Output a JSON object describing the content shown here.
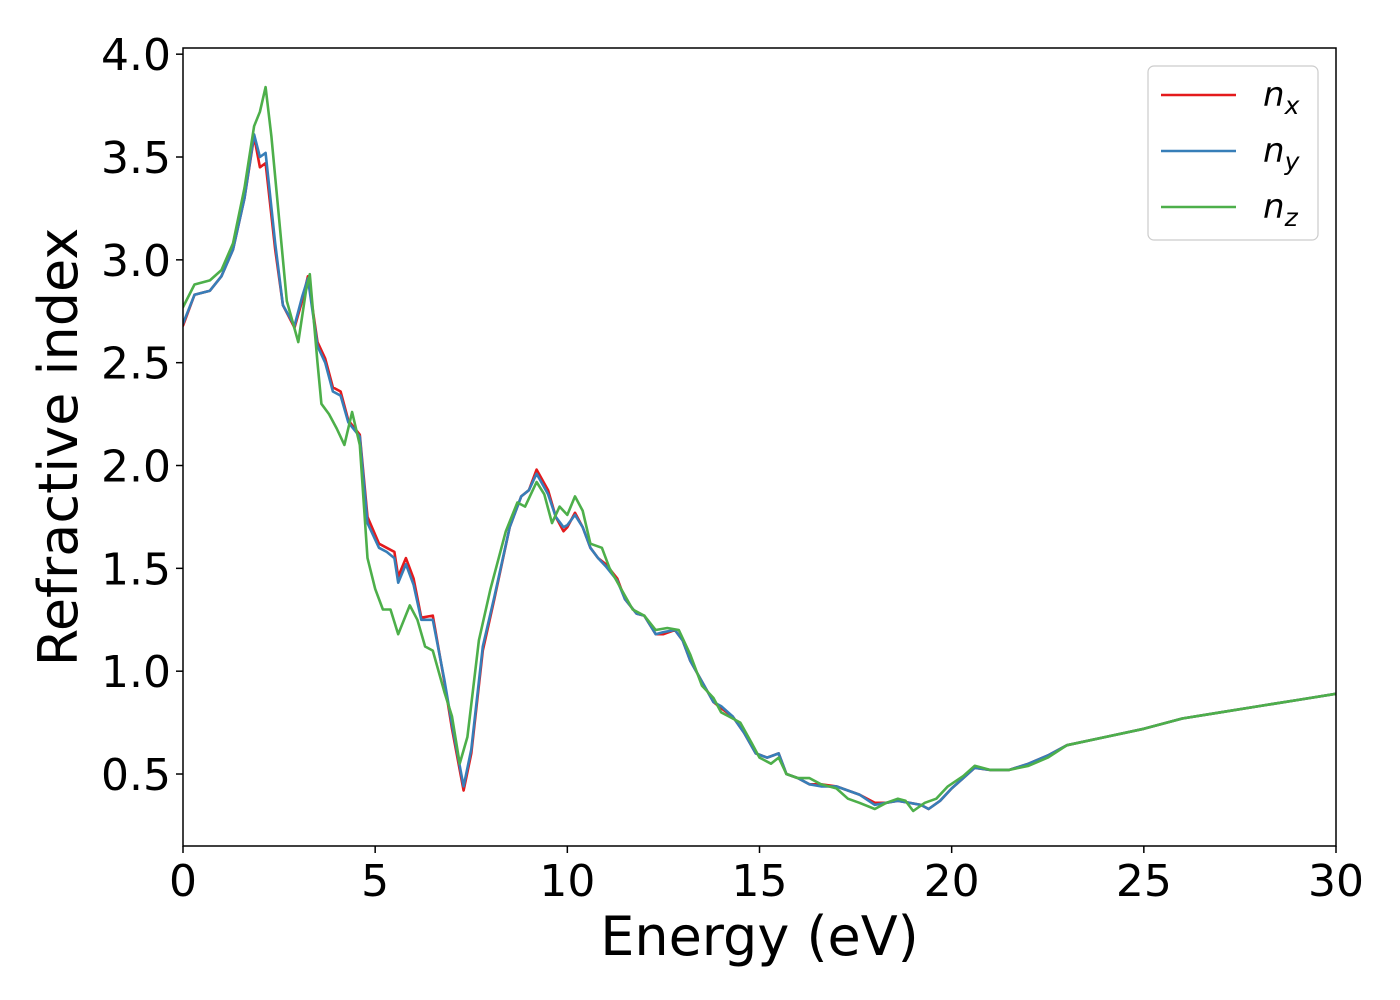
{
  "chart_data": {
    "type": "line",
    "title": "",
    "xlabel": "Energy (eV)",
    "ylabel": "Refractive index",
    "xlim": [
      0,
      30
    ],
    "ylim": [
      0.15,
      4.03
    ],
    "xticks": [
      0,
      5,
      10,
      15,
      20,
      25,
      30
    ],
    "xtick_labels": [
      "0",
      "5",
      "10",
      "15",
      "20",
      "25",
      "30"
    ],
    "yticks": [
      0.5,
      1.0,
      1.5,
      2.0,
      2.5,
      3.0,
      3.5,
      4.0
    ],
    "ytick_labels": [
      "0.5",
      "1.0",
      "1.5",
      "2.0",
      "2.5",
      "3.0",
      "3.5",
      "4.0"
    ],
    "grid": false,
    "legend_position": "top-right",
    "series": [
      {
        "name": "n_x",
        "base": "n",
        "sub": "x",
        "color": "#e41a1c",
        "points": [
          [
            0,
            2.68
          ],
          [
            0.3,
            2.83
          ],
          [
            0.7,
            2.85
          ],
          [
            1.0,
            2.92
          ],
          [
            1.3,
            3.05
          ],
          [
            1.6,
            3.3
          ],
          [
            1.85,
            3.6
          ],
          [
            2.0,
            3.45
          ],
          [
            2.15,
            3.47
          ],
          [
            2.4,
            3.05
          ],
          [
            2.6,
            2.78
          ],
          [
            2.9,
            2.67
          ],
          [
            3.1,
            2.8
          ],
          [
            3.25,
            2.92
          ],
          [
            3.5,
            2.6
          ],
          [
            3.7,
            2.52
          ],
          [
            3.9,
            2.38
          ],
          [
            4.1,
            2.36
          ],
          [
            4.3,
            2.22
          ],
          [
            4.6,
            2.15
          ],
          [
            4.8,
            1.75
          ],
          [
            5.1,
            1.62
          ],
          [
            5.3,
            1.6
          ],
          [
            5.5,
            1.58
          ],
          [
            5.6,
            1.46
          ],
          [
            5.8,
            1.55
          ],
          [
            6.0,
            1.45
          ],
          [
            6.2,
            1.26
          ],
          [
            6.5,
            1.27
          ],
          [
            6.8,
            0.95
          ],
          [
            7.0,
            0.72
          ],
          [
            7.3,
            0.42
          ],
          [
            7.5,
            0.6
          ],
          [
            7.8,
            1.1
          ],
          [
            8.1,
            1.35
          ],
          [
            8.5,
            1.7
          ],
          [
            8.8,
            1.85
          ],
          [
            9.0,
            1.88
          ],
          [
            9.2,
            1.98
          ],
          [
            9.5,
            1.88
          ],
          [
            9.7,
            1.75
          ],
          [
            9.9,
            1.68
          ],
          [
            10.0,
            1.7
          ],
          [
            10.2,
            1.77
          ],
          [
            10.4,
            1.7
          ],
          [
            10.6,
            1.6
          ],
          [
            10.8,
            1.55
          ],
          [
            11.0,
            1.52
          ],
          [
            11.3,
            1.45
          ],
          [
            11.5,
            1.35
          ],
          [
            11.8,
            1.28
          ],
          [
            12.0,
            1.27
          ],
          [
            12.3,
            1.18
          ],
          [
            12.5,
            1.18
          ],
          [
            12.8,
            1.2
          ],
          [
            13.0,
            1.15
          ],
          [
            13.2,
            1.05
          ],
          [
            13.5,
            0.95
          ],
          [
            13.8,
            0.85
          ],
          [
            14.0,
            0.82
          ],
          [
            14.3,
            0.78
          ],
          [
            14.6,
            0.7
          ],
          [
            14.9,
            0.6
          ],
          [
            15.2,
            0.58
          ],
          [
            15.5,
            0.6
          ],
          [
            15.7,
            0.5
          ],
          [
            16.0,
            0.48
          ],
          [
            16.3,
            0.45
          ],
          [
            16.6,
            0.45
          ],
          [
            17.0,
            0.44
          ],
          [
            17.3,
            0.42
          ],
          [
            17.6,
            0.4
          ],
          [
            18.0,
            0.36
          ],
          [
            18.3,
            0.36
          ],
          [
            18.6,
            0.37
          ],
          [
            18.9,
            0.36
          ],
          [
            19.2,
            0.35
          ],
          [
            19.4,
            0.33
          ],
          [
            19.7,
            0.37
          ],
          [
            20.0,
            0.43
          ],
          [
            20.3,
            0.48
          ],
          [
            20.6,
            0.53
          ],
          [
            21.0,
            0.52
          ],
          [
            21.5,
            0.52
          ],
          [
            22.0,
            0.55
          ],
          [
            22.5,
            0.59
          ],
          [
            23.0,
            0.64
          ],
          [
            24.0,
            0.68
          ],
          [
            25.0,
            0.72
          ],
          [
            26.0,
            0.77
          ],
          [
            27.0,
            0.8
          ],
          [
            28.0,
            0.83
          ],
          [
            29.0,
            0.86
          ],
          [
            30.0,
            0.89
          ]
        ]
      },
      {
        "name": "n_y",
        "base": "n",
        "sub": "y",
        "color": "#377eb8",
        "points": [
          [
            0,
            2.69
          ],
          [
            0.3,
            2.83
          ],
          [
            0.7,
            2.85
          ],
          [
            1.0,
            2.92
          ],
          [
            1.3,
            3.05
          ],
          [
            1.6,
            3.3
          ],
          [
            1.85,
            3.61
          ],
          [
            2.0,
            3.5
          ],
          [
            2.15,
            3.52
          ],
          [
            2.4,
            3.08
          ],
          [
            2.6,
            2.78
          ],
          [
            2.9,
            2.68
          ],
          [
            3.1,
            2.82
          ],
          [
            3.25,
            2.91
          ],
          [
            3.5,
            2.58
          ],
          [
            3.7,
            2.5
          ],
          [
            3.9,
            2.36
          ],
          [
            4.1,
            2.34
          ],
          [
            4.3,
            2.21
          ],
          [
            4.6,
            2.14
          ],
          [
            4.8,
            1.72
          ],
          [
            5.1,
            1.6
          ],
          [
            5.3,
            1.58
          ],
          [
            5.5,
            1.55
          ],
          [
            5.6,
            1.43
          ],
          [
            5.8,
            1.52
          ],
          [
            6.0,
            1.42
          ],
          [
            6.2,
            1.25
          ],
          [
            6.5,
            1.25
          ],
          [
            6.8,
            0.96
          ],
          [
            7.0,
            0.74
          ],
          [
            7.3,
            0.44
          ],
          [
            7.5,
            0.62
          ],
          [
            7.8,
            1.12
          ],
          [
            8.1,
            1.36
          ],
          [
            8.5,
            1.7
          ],
          [
            8.8,
            1.85
          ],
          [
            9.0,
            1.88
          ],
          [
            9.2,
            1.96
          ],
          [
            9.5,
            1.86
          ],
          [
            9.7,
            1.75
          ],
          [
            9.9,
            1.7
          ],
          [
            10.0,
            1.71
          ],
          [
            10.2,
            1.76
          ],
          [
            10.4,
            1.7
          ],
          [
            10.6,
            1.6
          ],
          [
            10.8,
            1.55
          ],
          [
            11.0,
            1.51
          ],
          [
            11.3,
            1.44
          ],
          [
            11.5,
            1.35
          ],
          [
            11.8,
            1.28
          ],
          [
            12.0,
            1.27
          ],
          [
            12.3,
            1.18
          ],
          [
            12.5,
            1.19
          ],
          [
            12.8,
            1.2
          ],
          [
            13.0,
            1.15
          ],
          [
            13.2,
            1.05
          ],
          [
            13.5,
            0.95
          ],
          [
            13.8,
            0.85
          ],
          [
            14.0,
            0.83
          ],
          [
            14.3,
            0.78
          ],
          [
            14.6,
            0.7
          ],
          [
            14.9,
            0.6
          ],
          [
            15.2,
            0.58
          ],
          [
            15.5,
            0.6
          ],
          [
            15.7,
            0.5
          ],
          [
            16.0,
            0.48
          ],
          [
            16.3,
            0.45
          ],
          [
            16.6,
            0.44
          ],
          [
            17.0,
            0.44
          ],
          [
            17.3,
            0.42
          ],
          [
            17.6,
            0.4
          ],
          [
            18.0,
            0.35
          ],
          [
            18.3,
            0.36
          ],
          [
            18.6,
            0.37
          ],
          [
            18.9,
            0.36
          ],
          [
            19.2,
            0.35
          ],
          [
            19.4,
            0.33
          ],
          [
            19.7,
            0.37
          ],
          [
            20.0,
            0.43
          ],
          [
            20.3,
            0.48
          ],
          [
            20.6,
            0.53
          ],
          [
            21.0,
            0.52
          ],
          [
            21.5,
            0.52
          ],
          [
            22.0,
            0.55
          ],
          [
            22.5,
            0.59
          ],
          [
            23.0,
            0.64
          ],
          [
            24.0,
            0.68
          ],
          [
            25.0,
            0.72
          ],
          [
            26.0,
            0.77
          ],
          [
            27.0,
            0.8
          ],
          [
            28.0,
            0.83
          ],
          [
            29.0,
            0.86
          ],
          [
            30.0,
            0.89
          ]
        ]
      },
      {
        "name": "n_z",
        "base": "n",
        "sub": "z",
        "color": "#4daf4a",
        "points": [
          [
            0,
            2.77
          ],
          [
            0.3,
            2.88
          ],
          [
            0.7,
            2.9
          ],
          [
            1.0,
            2.95
          ],
          [
            1.3,
            3.08
          ],
          [
            1.6,
            3.35
          ],
          [
            1.85,
            3.65
          ],
          [
            2.0,
            3.72
          ],
          [
            2.15,
            3.84
          ],
          [
            2.3,
            3.6
          ],
          [
            2.5,
            3.2
          ],
          [
            2.7,
            2.8
          ],
          [
            3.0,
            2.6
          ],
          [
            3.2,
            2.85
          ],
          [
            3.3,
            2.93
          ],
          [
            3.5,
            2.5
          ],
          [
            3.6,
            2.3
          ],
          [
            3.8,
            2.25
          ],
          [
            4.0,
            2.18
          ],
          [
            4.2,
            2.1
          ],
          [
            4.4,
            2.26
          ],
          [
            4.6,
            2.1
          ],
          [
            4.8,
            1.55
          ],
          [
            5.0,
            1.4
          ],
          [
            5.2,
            1.3
          ],
          [
            5.4,
            1.3
          ],
          [
            5.6,
            1.18
          ],
          [
            5.9,
            1.32
          ],
          [
            6.1,
            1.25
          ],
          [
            6.3,
            1.12
          ],
          [
            6.5,
            1.1
          ],
          [
            6.8,
            0.9
          ],
          [
            7.0,
            0.78
          ],
          [
            7.2,
            0.55
          ],
          [
            7.4,
            0.68
          ],
          [
            7.7,
            1.15
          ],
          [
            8.0,
            1.4
          ],
          [
            8.4,
            1.68
          ],
          [
            8.7,
            1.82
          ],
          [
            8.9,
            1.8
          ],
          [
            9.2,
            1.92
          ],
          [
            9.4,
            1.86
          ],
          [
            9.6,
            1.72
          ],
          [
            9.8,
            1.8
          ],
          [
            10.0,
            1.76
          ],
          [
            10.2,
            1.85
          ],
          [
            10.4,
            1.78
          ],
          [
            10.6,
            1.62
          ],
          [
            10.9,
            1.6
          ],
          [
            11.1,
            1.5
          ],
          [
            11.4,
            1.4
          ],
          [
            11.7,
            1.3
          ],
          [
            12.0,
            1.27
          ],
          [
            12.3,
            1.2
          ],
          [
            12.6,
            1.21
          ],
          [
            12.9,
            1.2
          ],
          [
            13.2,
            1.08
          ],
          [
            13.5,
            0.93
          ],
          [
            13.8,
            0.87
          ],
          [
            14.0,
            0.8
          ],
          [
            14.2,
            0.78
          ],
          [
            14.5,
            0.75
          ],
          [
            14.8,
            0.65
          ],
          [
            15.0,
            0.58
          ],
          [
            15.3,
            0.55
          ],
          [
            15.5,
            0.58
          ],
          [
            15.7,
            0.5
          ],
          [
            16.0,
            0.48
          ],
          [
            16.3,
            0.48
          ],
          [
            16.6,
            0.45
          ],
          [
            17.0,
            0.43
          ],
          [
            17.3,
            0.38
          ],
          [
            17.6,
            0.36
          ],
          [
            18.0,
            0.33
          ],
          [
            18.3,
            0.36
          ],
          [
            18.6,
            0.38
          ],
          [
            18.8,
            0.37
          ],
          [
            19.0,
            0.32
          ],
          [
            19.3,
            0.36
          ],
          [
            19.6,
            0.38
          ],
          [
            19.9,
            0.44
          ],
          [
            20.3,
            0.49
          ],
          [
            20.6,
            0.54
          ],
          [
            21.0,
            0.52
          ],
          [
            21.5,
            0.52
          ],
          [
            22.0,
            0.54
          ],
          [
            22.5,
            0.58
          ],
          [
            23.0,
            0.64
          ],
          [
            24.0,
            0.68
          ],
          [
            25.0,
            0.72
          ],
          [
            26.0,
            0.77
          ],
          [
            27.0,
            0.8
          ],
          [
            28.0,
            0.83
          ],
          [
            29.0,
            0.86
          ],
          [
            30.0,
            0.89
          ]
        ]
      }
    ]
  }
}
